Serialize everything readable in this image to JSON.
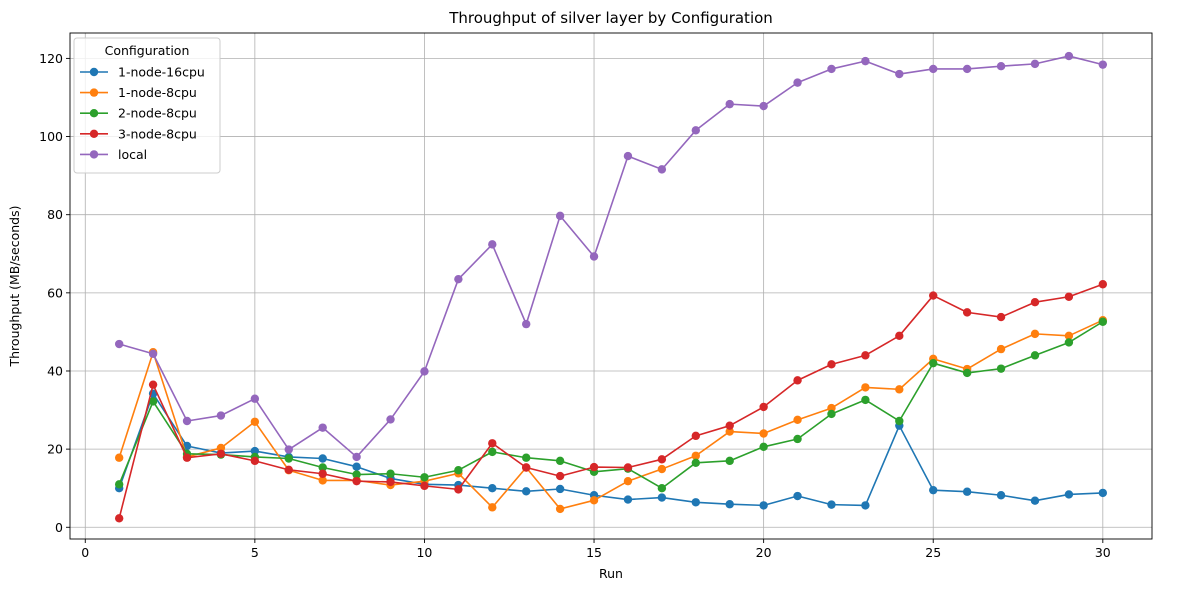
{
  "chart_data": {
    "type": "line",
    "title": "Throughput of silver layer by Configuration",
    "xlabel": "Run",
    "ylabel": "Throughput (MB/seconds)",
    "xlim": [
      -0.45,
      31.45
    ],
    "ylim": [
      -3.0,
      126.5
    ],
    "xticks": [
      0,
      5,
      10,
      15,
      20,
      25,
      30
    ],
    "yticks": [
      0,
      20,
      40,
      60,
      80,
      100,
      120
    ],
    "grid": true,
    "legend": {
      "title": "Configuration",
      "placement": "upper-left"
    },
    "x": [
      1,
      2,
      3,
      4,
      5,
      6,
      7,
      8,
      9,
      10,
      11,
      12,
      13,
      14,
      15,
      16,
      17,
      18,
      19,
      20,
      21,
      22,
      23,
      24,
      25,
      26,
      27,
      28,
      29,
      30
    ],
    "series": [
      {
        "name": "1-node-16cpu",
        "color": "#1f77b4",
        "values": [
          10.0,
          34.2,
          20.8,
          19.0,
          19.5,
          18.0,
          17.6,
          15.5,
          12.5,
          11.0,
          10.8,
          10.0,
          9.2,
          9.8,
          8.2,
          7.1,
          7.6,
          6.4,
          5.9,
          5.6,
          8.0,
          5.8,
          5.6,
          26.0,
          9.5,
          9.1,
          8.2,
          6.8,
          8.4,
          8.8
        ]
      },
      {
        "name": "1-node-8cpu",
        "color": "#ff7f0e",
        "values": [
          17.8,
          44.8,
          18.0,
          20.3,
          27.0,
          14.6,
          12.0,
          12.0,
          10.8,
          11.8,
          13.8,
          5.1,
          15.3,
          4.7,
          6.9,
          11.8,
          14.9,
          18.3,
          24.5,
          24.0,
          27.5,
          30.5,
          35.8,
          35.3,
          43.1,
          40.5,
          45.6,
          49.5,
          49.0,
          53.0
        ]
      },
      {
        "name": "2-node-8cpu",
        "color": "#2ca02c",
        "values": [
          11.0,
          32.2,
          18.8,
          18.6,
          18.0,
          17.6,
          15.3,
          13.5,
          13.7,
          12.8,
          14.6,
          19.3,
          17.8,
          17.0,
          14.2,
          15.0,
          10.0,
          16.5,
          17.0,
          20.6,
          22.6,
          29.0,
          32.6,
          27.2,
          42.0,
          39.5,
          40.6,
          44.0,
          47.3,
          52.6
        ]
      },
      {
        "name": "3-node-8cpu",
        "color": "#d62728",
        "values": [
          2.3,
          36.5,
          17.8,
          18.8,
          17.0,
          14.7,
          13.7,
          11.8,
          11.6,
          10.6,
          9.7,
          21.5,
          15.3,
          13.1,
          15.4,
          15.3,
          17.4,
          23.4,
          26.0,
          30.8,
          37.6,
          41.7,
          44.0,
          49.0,
          59.3,
          55.0,
          53.8,
          57.6,
          59.0,
          62.2
        ]
      },
      {
        "name": "local",
        "color": "#9467bd",
        "values": [
          46.9,
          44.4,
          27.2,
          28.6,
          32.9,
          19.9,
          25.5,
          18.0,
          27.6,
          39.9,
          63.5,
          72.4,
          52.0,
          79.7,
          69.3,
          95.0,
          91.6,
          101.6,
          108.3,
          107.8,
          113.8,
          117.3,
          119.3,
          116.0,
          117.3,
          117.3,
          118.0,
          118.6,
          120.6,
          118.4
        ]
      }
    ]
  }
}
